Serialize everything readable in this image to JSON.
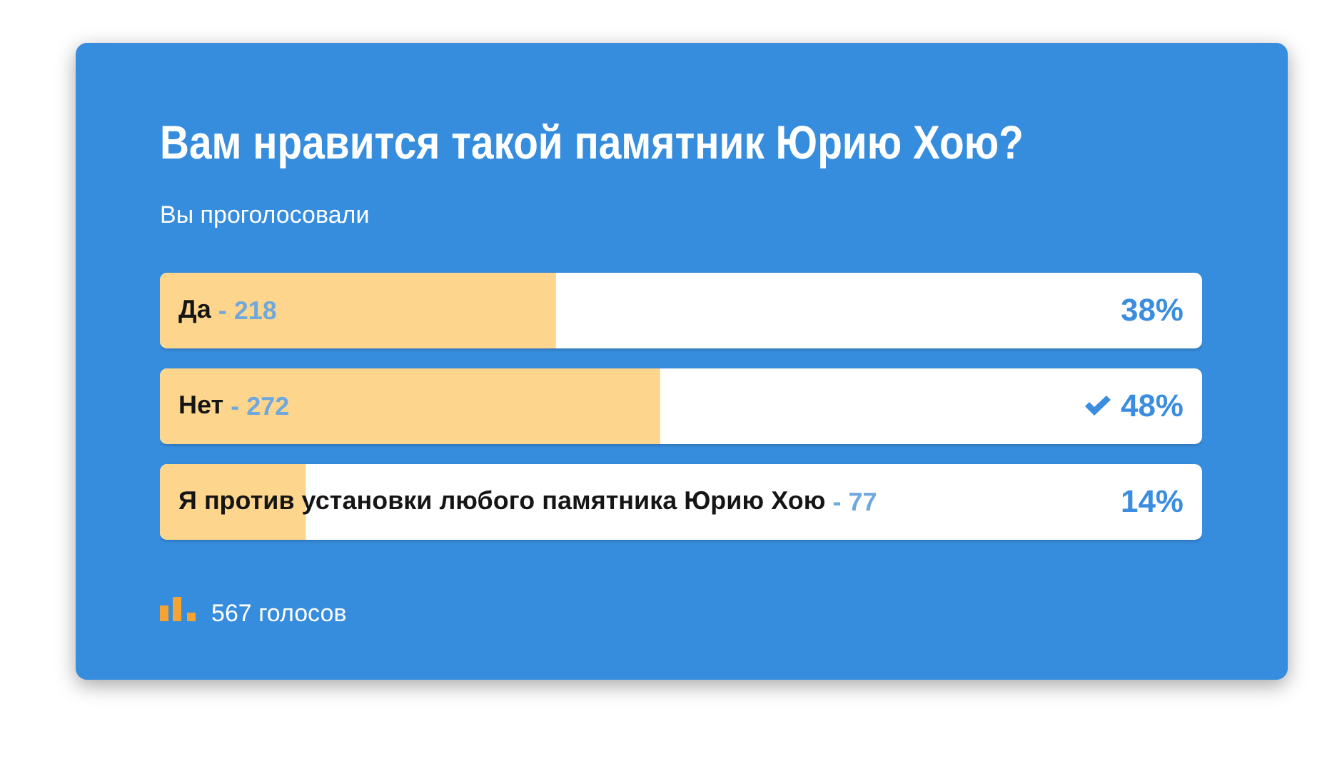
{
  "chart_data": {
    "type": "bar",
    "orientation": "horizontal",
    "title": "Вам нравится такой памятник Юрию Хою?",
    "subtitle": "Вы проголосовали",
    "categories": [
      "Да",
      "Нет",
      "Я против установки любого памятника Юрию Хою"
    ],
    "values": [
      38,
      48,
      14
    ],
    "color": "#fdd58c",
    "xlim": [
      0,
      100
    ],
    "tick_labels": "y",
    "value_labels": [
      "38%",
      "48%",
      "14%"
    ],
    "annotations": [
      "- 218",
      "- 272",
      "- 77",
      "567 голосов"
    ]
  }
}
